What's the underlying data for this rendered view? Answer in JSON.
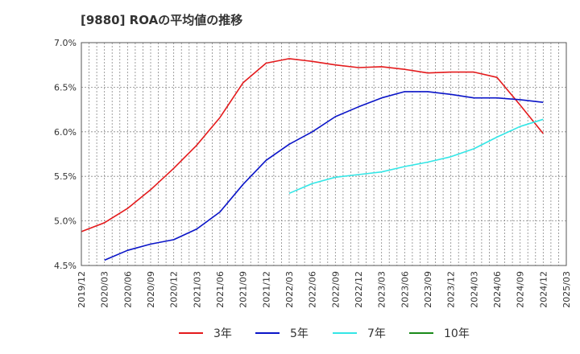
{
  "chart_data": {
    "type": "line",
    "title": "[9880]  ROAの平均値の推移",
    "xlabel": "",
    "ylabel": "",
    "ylim": [
      4.5,
      7.0
    ],
    "grid": true,
    "legend_position": "bottom",
    "y_ticks": [
      "4.5%",
      "5.0%",
      "5.5%",
      "6.0%",
      "6.5%",
      "7.0%"
    ],
    "x_ticks": [
      "2019/12",
      "2020/03",
      "2020/06",
      "2020/09",
      "2020/12",
      "2021/03",
      "2021/06",
      "2021/09",
      "2021/12",
      "2022/03",
      "2022/06",
      "2022/09",
      "2022/12",
      "2023/03",
      "2023/06",
      "2023/09",
      "2023/12",
      "2024/03",
      "2024/06",
      "2024/09",
      "2024/12",
      "2025/03"
    ],
    "series": [
      {
        "name": "3年",
        "color": "#e41a1c",
        "values": [
          [
            "2019/12",
            4.88
          ],
          [
            "2020/03",
            4.98
          ],
          [
            "2020/06",
            5.14
          ],
          [
            "2020/09",
            5.35
          ],
          [
            "2020/12",
            5.59
          ],
          [
            "2021/03",
            5.85
          ],
          [
            "2021/06",
            6.16
          ],
          [
            "2021/09",
            6.55
          ],
          [
            "2021/12",
            6.77
          ],
          [
            "2022/03",
            6.82
          ],
          [
            "2022/06",
            6.79
          ],
          [
            "2022/09",
            6.75
          ],
          [
            "2022/12",
            6.72
          ],
          [
            "2023/03",
            6.73
          ],
          [
            "2023/06",
            6.7
          ],
          [
            "2023/09",
            6.66
          ],
          [
            "2023/12",
            6.67
          ],
          [
            "2024/03",
            6.67
          ],
          [
            "2024/06",
            6.61
          ],
          [
            "2024/09",
            6.3
          ],
          [
            "2024/12",
            5.98
          ]
        ]
      },
      {
        "name": "5年",
        "color": "#0a14c8",
        "values": [
          [
            "2020/03",
            4.56
          ],
          [
            "2020/06",
            4.67
          ],
          [
            "2020/09",
            4.74
          ],
          [
            "2020/12",
            4.79
          ],
          [
            "2021/03",
            4.91
          ],
          [
            "2021/06",
            5.1
          ],
          [
            "2021/09",
            5.41
          ],
          [
            "2021/12",
            5.68
          ],
          [
            "2022/03",
            5.86
          ],
          [
            "2022/06",
            6.0
          ],
          [
            "2022/09",
            6.17
          ],
          [
            "2022/12",
            6.28
          ],
          [
            "2023/03",
            6.38
          ],
          [
            "2023/06",
            6.45
          ],
          [
            "2023/09",
            6.45
          ],
          [
            "2023/12",
            6.42
          ],
          [
            "2024/03",
            6.38
          ],
          [
            "2024/06",
            6.38
          ],
          [
            "2024/09",
            6.36
          ],
          [
            "2024/12",
            6.33
          ]
        ]
      },
      {
        "name": "7年",
        "color": "#33e6e6",
        "values": [
          [
            "2022/03",
            5.31
          ],
          [
            "2022/06",
            5.42
          ],
          [
            "2022/09",
            5.49
          ],
          [
            "2022/12",
            5.52
          ],
          [
            "2023/03",
            5.55
          ],
          [
            "2023/06",
            5.61
          ],
          [
            "2023/09",
            5.66
          ],
          [
            "2023/12",
            5.72
          ],
          [
            "2024/03",
            5.81
          ],
          [
            "2024/06",
            5.94
          ],
          [
            "2024/09",
            6.06
          ],
          [
            "2024/12",
            6.14
          ]
        ]
      },
      {
        "name": "10年",
        "color": "#1a8a1a",
        "values": []
      }
    ]
  }
}
